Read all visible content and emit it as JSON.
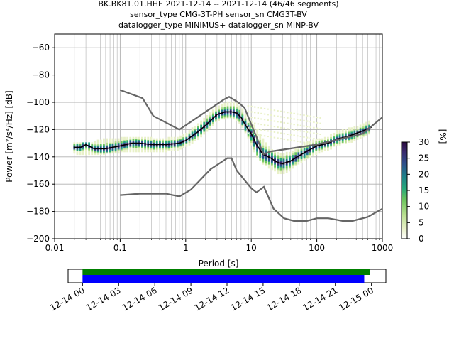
{
  "title_lines": [
    "BK.BK81.01.HHE   2021-12-14 -- 2021-12-14  (46/46 segments)",
    "sensor_type CMG-3T-PH sensor_sn CMG3T-BV",
    "datalogger_type MINIMUS+ datalogger_sn MINP-BV"
  ],
  "chart_data": [
    {
      "type": "heatmap",
      "title": "BK.BK81.01.HHE   2021-12-14 -- 2021-12-14  (46/46 segments)",
      "xlabel": "Period [s]",
      "ylabel": "Power [m²/s⁴/Hz] [dB]",
      "xscale": "log",
      "xlim": [
        0.01,
        1000
      ],
      "ylim": [
        -200,
        -50
      ],
      "grid": true,
      "x_ticks": [
        "0.01",
        "0.1",
        "1",
        "10",
        "100",
        "1000"
      ],
      "y_ticks": [
        "−200",
        "−180",
        "−160",
        "−140",
        "−120",
        "−100",
        "−80",
        "−60"
      ],
      "colorbar": {
        "label": "[%]",
        "ticks": [
          "0",
          "5",
          "10",
          "15",
          "20",
          "25",
          "30"
        ],
        "range": [
          0,
          30
        ]
      },
      "series": [
        {
          "role": "mode",
          "points": [
            [
              0.02,
              -133
            ],
            [
              0.025,
              -133
            ],
            [
              0.03,
              -131
            ],
            [
              0.04,
              -134
            ],
            [
              0.06,
              -134
            ],
            [
              0.1,
              -132
            ],
            [
              0.15,
              -130
            ],
            [
              0.2,
              -130
            ],
            [
              0.3,
              -131
            ],
            [
              0.5,
              -131
            ],
            [
              0.8,
              -130
            ],
            [
              1,
              -128
            ],
            [
              1.5,
              -122
            ],
            [
              2,
              -117
            ],
            [
              3,
              -109
            ],
            [
              4,
              -107
            ],
            [
              5,
              -107
            ],
            [
              6,
              -108
            ],
            [
              7,
              -111
            ],
            [
              8,
              -116
            ],
            [
              10,
              -123
            ],
            [
              12,
              -131
            ],
            [
              15,
              -138
            ],
            [
              20,
              -141
            ],
            [
              25,
              -144
            ],
            [
              30,
              -145
            ],
            [
              40,
              -143
            ],
            [
              50,
              -140
            ],
            [
              70,
              -136
            ],
            [
              100,
              -132
            ],
            [
              150,
              -130
            ],
            [
              200,
              -127
            ],
            [
              300,
              -125
            ],
            [
              500,
              -121
            ],
            [
              700,
              -118
            ]
          ]
        },
        {
          "role": "noise_model_high",
          "points": [
            [
              0.1,
              -91
            ],
            [
              0.22,
              -97
            ],
            [
              0.32,
              -110
            ],
            [
              0.8,
              -120
            ],
            [
              3.8,
              -98
            ],
            [
              4.6,
              -96
            ],
            [
              6.3,
              -100
            ],
            [
              7.9,
              -104
            ],
            [
              15.4,
              -138
            ],
            [
              20,
              -136
            ],
            [
              100,
              -131
            ],
            [
              500,
              -123
            ],
            [
              1000,
              -111
            ]
          ]
        },
        {
          "role": "noise_model_low",
          "points": [
            [
              0.1,
              -168
            ],
            [
              0.2,
              -167
            ],
            [
              0.5,
              -167
            ],
            [
              0.8,
              -169
            ],
            [
              1.2,
              -164
            ],
            [
              2.4,
              -149
            ],
            [
              4.3,
              -141
            ],
            [
              5,
              -141
            ],
            [
              6,
              -150
            ],
            [
              10,
              -163
            ],
            [
              12,
              -166
            ],
            [
              15.6,
              -162
            ],
            [
              21.9,
              -178
            ],
            [
              31.6,
              -185
            ],
            [
              45,
              -187
            ],
            [
              70,
              -187
            ],
            [
              100,
              -185
            ],
            [
              150,
              -185
            ],
            [
              250,
              -187
            ],
            [
              350,
              -187
            ],
            [
              600,
              -184
            ],
            [
              1000,
              -178
            ]
          ]
        }
      ],
      "ppsd_band": {
        "upper": [
          [
            0.02,
            -130
          ],
          [
            0.04,
            -130
          ],
          [
            0.06,
            -127
          ],
          [
            0.1,
            -127
          ],
          [
            0.2,
            -126
          ],
          [
            0.3,
            -127
          ],
          [
            0.5,
            -127
          ],
          [
            0.8,
            -126
          ],
          [
            1,
            -124
          ],
          [
            1.5,
            -117
          ],
          [
            2,
            -112
          ],
          [
            3,
            -104
          ],
          [
            4,
            -101
          ],
          [
            5,
            -100
          ],
          [
            6,
            -102
          ],
          [
            7,
            -104
          ],
          [
            8,
            -109
          ],
          [
            10,
            -114
          ],
          [
            12,
            -120
          ],
          [
            15,
            -127
          ],
          [
            20,
            -135
          ],
          [
            25,
            -137
          ],
          [
            30,
            -139
          ],
          [
            40,
            -137
          ],
          [
            50,
            -134
          ],
          [
            70,
            -130
          ],
          [
            100,
            -128
          ],
          [
            150,
            -126
          ],
          [
            200,
            -122
          ],
          [
            300,
            -120
          ],
          [
            500,
            -117
          ],
          [
            700,
            -114
          ]
        ],
        "lower": [
          [
            0.02,
            -137
          ],
          [
            0.04,
            -138
          ],
          [
            0.06,
            -137
          ],
          [
            0.1,
            -136
          ],
          [
            0.2,
            -135
          ],
          [
            0.3,
            -136
          ],
          [
            0.5,
            -135
          ],
          [
            0.8,
            -134
          ],
          [
            1,
            -132
          ],
          [
            1.5,
            -127
          ],
          [
            2,
            -122
          ],
          [
            3,
            -113
          ],
          [
            4,
            -111
          ],
          [
            5,
            -111
          ],
          [
            6,
            -113
          ],
          [
            7,
            -116
          ],
          [
            8,
            -121
          ],
          [
            10,
            -130
          ],
          [
            12,
            -139
          ],
          [
            15,
            -144
          ],
          [
            20,
            -148
          ],
          [
            25,
            -151
          ],
          [
            30,
            -152
          ],
          [
            40,
            -149
          ],
          [
            50,
            -145
          ],
          [
            70,
            -141
          ],
          [
            100,
            -137
          ],
          [
            150,
            -134
          ],
          [
            200,
            -131
          ],
          [
            300,
            -129
          ],
          [
            500,
            -125
          ],
          [
            700,
            -122
          ]
        ]
      }
    },
    {
      "type": "timeline",
      "x_ticks": [
        "12-14 00",
        "12-14 03",
        "12-14 06",
        "12-14 09",
        "12-14 12",
        "12-14 15",
        "12-14 18",
        "12-14 21",
        "12-15 00"
      ],
      "x_hours": [
        0,
        3,
        6,
        9,
        12,
        15,
        18,
        21,
        24
      ],
      "xlim_hours": [
        -1.2,
        25.2
      ],
      "bars": [
        {
          "start_hours": 0,
          "end_hours": 23.9,
          "color": "#008000"
        },
        {
          "start_hours": 0,
          "end_hours": 23.4,
          "color": "#0000ff"
        }
      ]
    }
  ],
  "colors": {
    "mode": "#000000",
    "noise_model": "#666666",
    "grid": "#b0b0b0",
    "colormap": [
      "#ffffff",
      "#e9f1c9",
      "#b8de8f",
      "#6cc55d",
      "#27a87a",
      "#1f7f8a",
      "#2f4e8a",
      "#3a2a6d",
      "#2a0a3f"
    ]
  }
}
